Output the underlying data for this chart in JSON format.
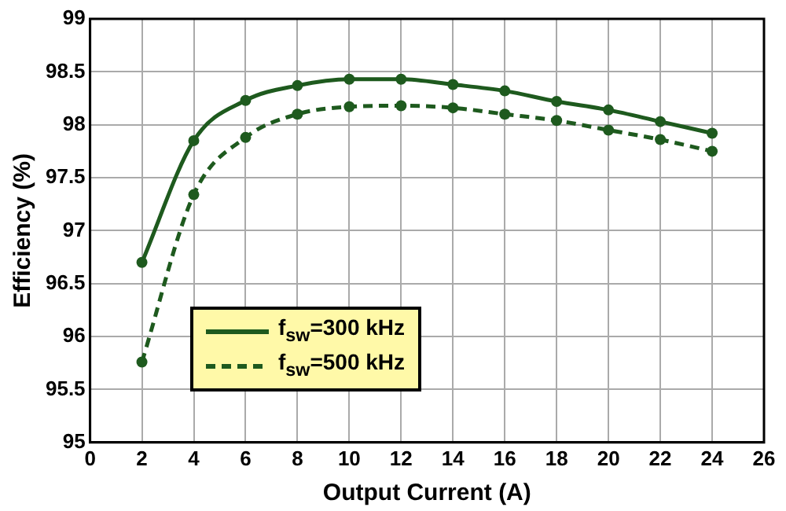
{
  "chart_data": {
    "type": "line",
    "xlabel": "Output Current (A)",
    "ylabel": "Efficiency (%)",
    "x": [
      2,
      4,
      6,
      8,
      10,
      12,
      14,
      16,
      18,
      20,
      22,
      24
    ],
    "series": [
      {
        "name": "f$_{sw}$=300 kHz",
        "color": "#1e5a1e",
        "line_style": "solid",
        "values": [
          96.7,
          97.85,
          98.23,
          98.37,
          98.43,
          98.43,
          98.38,
          98.32,
          98.22,
          98.14,
          98.03,
          97.92
        ]
      },
      {
        "name": "f$_{sw}$=500 kHz",
        "color": "#1e5a1e",
        "line_style": "dashed",
        "values": [
          95.76,
          97.34,
          97.88,
          98.1,
          98.17,
          98.18,
          98.16,
          98.1,
          98.04,
          97.95,
          97.86,
          97.75
        ]
      }
    ],
    "xlim": [
      0,
      26
    ],
    "xticks": [
      0,
      2,
      4,
      6,
      8,
      10,
      12,
      14,
      16,
      18,
      20,
      22,
      24,
      26
    ],
    "ylim": [
      95,
      99
    ],
    "yticks": [
      95,
      95.5,
      96,
      96.5,
      97,
      97.5,
      98,
      98.5,
      99
    ],
    "grid": true,
    "legend": "bottom",
    "marker": "circle"
  }
}
